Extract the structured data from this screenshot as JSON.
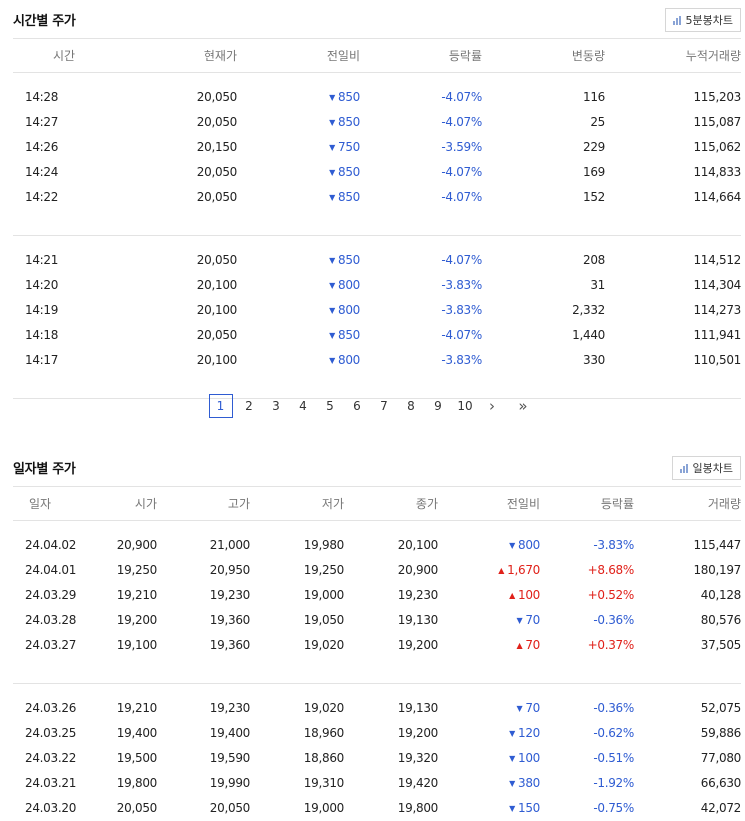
{
  "hourly": {
    "title": "시간별 주가",
    "chart_button": "5분봉차트",
    "headers": [
      "시간",
      "현재가",
      "전일비",
      "등락률",
      "변동량",
      "누적거래량"
    ],
    "groups": [
      [
        {
          "time": "14:28",
          "price": "20,050",
          "diff": "850",
          "rate": "-4.07%",
          "vol": "116",
          "acc": "115,203"
        },
        {
          "time": "14:27",
          "price": "20,050",
          "diff": "850",
          "rate": "-4.07%",
          "vol": "25",
          "acc": "115,087"
        },
        {
          "time": "14:26",
          "price": "20,150",
          "diff": "750",
          "rate": "-3.59%",
          "vol": "229",
          "acc": "115,062"
        },
        {
          "time": "14:24",
          "price": "20,050",
          "diff": "850",
          "rate": "-4.07%",
          "vol": "169",
          "acc": "114,833"
        },
        {
          "time": "14:22",
          "price": "20,050",
          "diff": "850",
          "rate": "-4.07%",
          "vol": "152",
          "acc": "114,664"
        }
      ],
      [
        {
          "time": "14:21",
          "price": "20,050",
          "diff": "850",
          "rate": "-4.07%",
          "vol": "208",
          "acc": "114,512"
        },
        {
          "time": "14:20",
          "price": "20,100",
          "diff": "800",
          "rate": "-3.83%",
          "vol": "31",
          "acc": "114,304"
        },
        {
          "time": "14:19",
          "price": "20,100",
          "diff": "800",
          "rate": "-3.83%",
          "vol": "2,332",
          "acc": "114,273"
        },
        {
          "time": "14:18",
          "price": "20,050",
          "diff": "850",
          "rate": "-4.07%",
          "vol": "1,440",
          "acc": "111,941"
        },
        {
          "time": "14:17",
          "price": "20,100",
          "diff": "800",
          "rate": "-3.83%",
          "vol": "330",
          "acc": "110,501"
        }
      ]
    ]
  },
  "pagination": {
    "pages": [
      "1",
      "2",
      "3",
      "4",
      "5",
      "6",
      "7",
      "8",
      "9",
      "10"
    ],
    "current": "1",
    "next": "›",
    "last": "»"
  },
  "daily": {
    "title": "일자별 주가",
    "chart_button": "일봉차트",
    "headers": [
      "일자",
      "시가",
      "고가",
      "저가",
      "종가",
      "전일비",
      "등락률",
      "거래량"
    ],
    "groups": [
      [
        {
          "date": "24.04.02",
          "open": "20,900",
          "high": "21,000",
          "low": "19,980",
          "close": "20,100",
          "dir": "down",
          "diff": "800",
          "rate": "-3.83%",
          "vol": "115,447"
        },
        {
          "date": "24.04.01",
          "open": "19,250",
          "high": "20,950",
          "low": "19,250",
          "close": "20,900",
          "dir": "up",
          "diff": "1,670",
          "rate": "+8.68%",
          "vol": "180,197"
        },
        {
          "date": "24.03.29",
          "open": "19,210",
          "high": "19,230",
          "low": "19,000",
          "close": "19,230",
          "dir": "up",
          "diff": "100",
          "rate": "+0.52%",
          "vol": "40,128"
        },
        {
          "date": "24.03.28",
          "open": "19,200",
          "high": "19,360",
          "low": "19,050",
          "close": "19,130",
          "dir": "down",
          "diff": "70",
          "rate": "-0.36%",
          "vol": "80,576"
        },
        {
          "date": "24.03.27",
          "open": "19,100",
          "high": "19,360",
          "low": "19,020",
          "close": "19,200",
          "dir": "up",
          "diff": "70",
          "rate": "+0.37%",
          "vol": "37,505"
        }
      ],
      [
        {
          "date": "24.03.26",
          "open": "19,210",
          "high": "19,230",
          "low": "19,020",
          "close": "19,130",
          "dir": "down",
          "diff": "70",
          "rate": "-0.36%",
          "vol": "52,075"
        },
        {
          "date": "24.03.25",
          "open": "19,400",
          "high": "19,400",
          "low": "18,960",
          "close": "19,200",
          "dir": "down",
          "diff": "120",
          "rate": "-0.62%",
          "vol": "59,886"
        },
        {
          "date": "24.03.22",
          "open": "19,500",
          "high": "19,590",
          "low": "18,860",
          "close": "19,320",
          "dir": "down",
          "diff": "100",
          "rate": "-0.51%",
          "vol": "77,080"
        },
        {
          "date": "24.03.21",
          "open": "19,800",
          "high": "19,990",
          "low": "19,310",
          "close": "19,420",
          "dir": "down",
          "diff": "380",
          "rate": "-1.92%",
          "vol": "66,630"
        },
        {
          "date": "24.03.20",
          "open": "20,050",
          "high": "20,050",
          "low": "19,000",
          "close": "19,800",
          "dir": "down",
          "diff": "150",
          "rate": "-0.75%",
          "vol": "42,072"
        }
      ]
    ]
  },
  "colors": {
    "down": "#2f5cd2",
    "up": "#e0211a",
    "border": "#e3e3e3"
  }
}
